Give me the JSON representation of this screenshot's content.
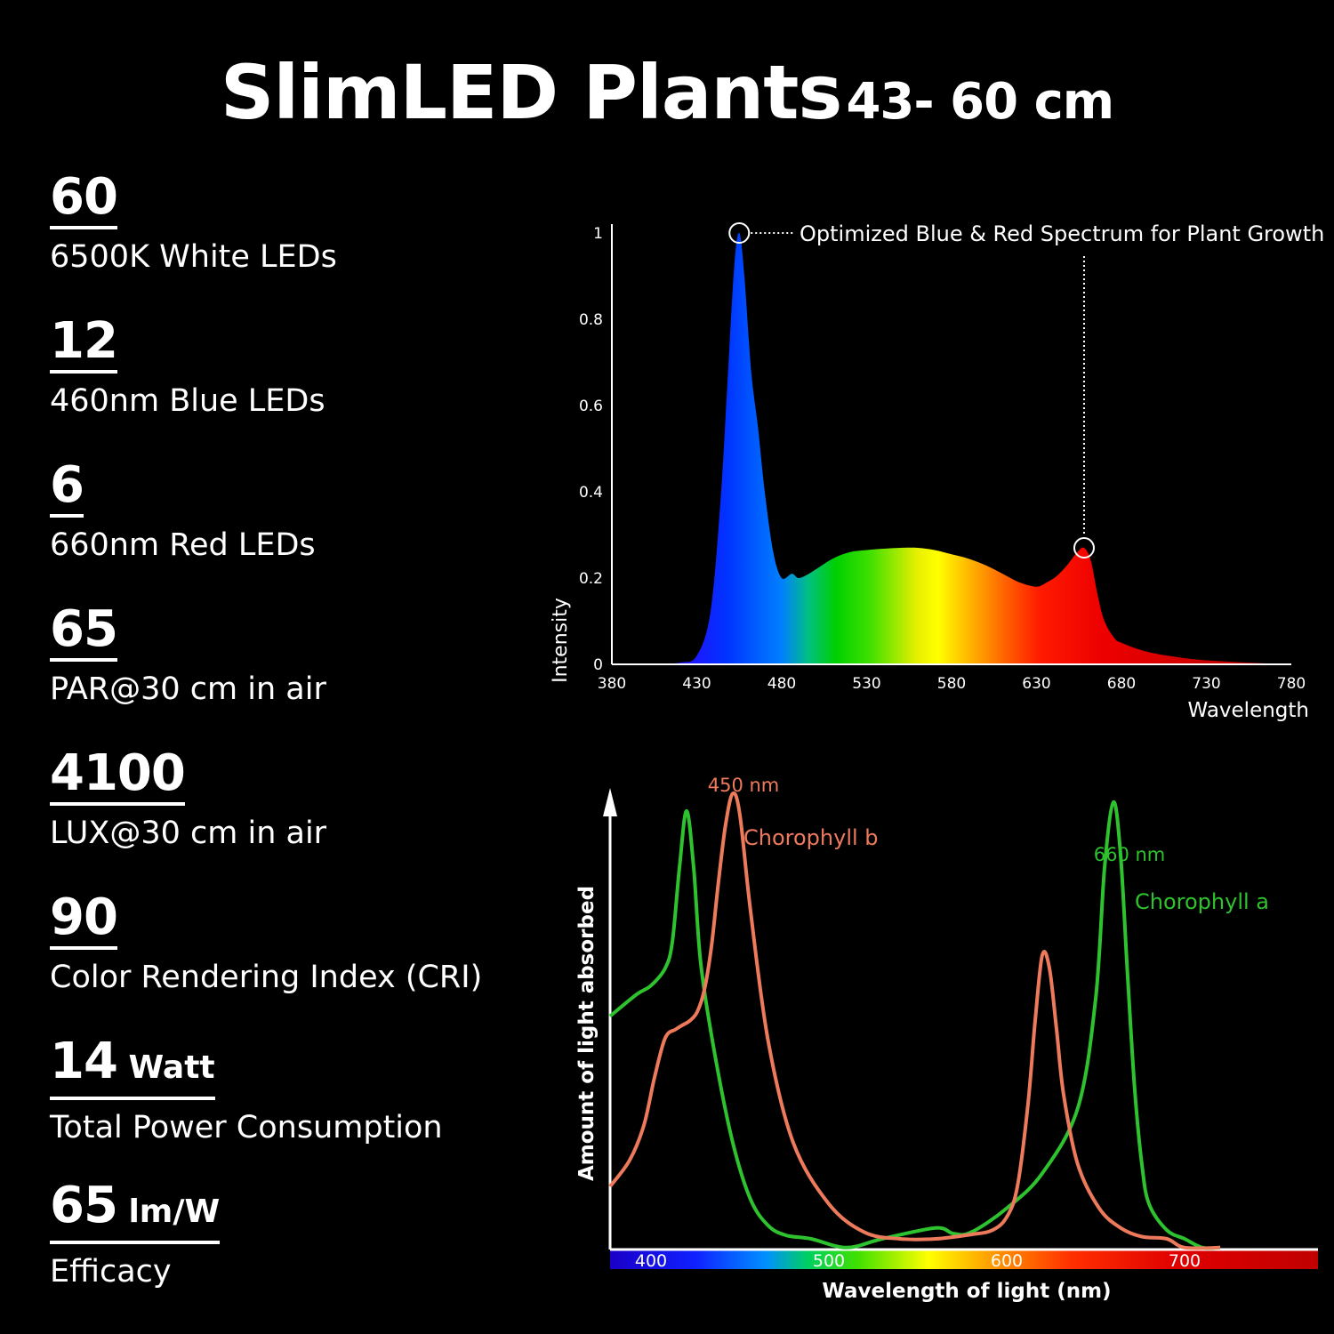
{
  "title": {
    "main": "SlimLED Plants",
    "size": "43- 60 cm"
  },
  "specs": [
    {
      "value": "60",
      "unit": "",
      "label": "6500K White LEDs"
    },
    {
      "value": "12",
      "unit": "",
      "label": "460nm Blue LEDs"
    },
    {
      "value": "6",
      "unit": "",
      "label": "660nm Red LEDs"
    },
    {
      "value": "65",
      "unit": "",
      "label": "PAR@30 cm in air"
    },
    {
      "value": "4100",
      "unit": "",
      "label": "LUX@30 cm in air"
    },
    {
      "value": "90",
      "unit": "",
      "label": "Color Rendering Index (CRI)"
    },
    {
      "value": "14",
      "unit": "Watt",
      "label": "Total Power Consumption"
    },
    {
      "value": "65",
      "unit": "lm/W",
      "label": "Efficacy"
    }
  ],
  "chart_data": [
    {
      "type": "area",
      "title": "",
      "xlabel": "Wavelength",
      "ylabel": "Intensity",
      "xlim": [
        380,
        780
      ],
      "ylim": [
        0,
        1
      ],
      "x_ticks": [
        "380",
        "430",
        "480",
        "530",
        "580",
        "630",
        "680",
        "730",
        "780"
      ],
      "y_ticks": [
        "0",
        "0.2",
        "0.4",
        "0.6",
        "0.8",
        "1"
      ],
      "annotation": "Optimized Blue & Red Spectrum for Plant Growth",
      "peaks": [
        {
          "x": 455,
          "y": 1.0
        },
        {
          "x": 658,
          "y": 0.27
        }
      ],
      "series": [
        {
          "x": [
            380,
            400,
            420,
            430,
            438,
            444,
            448,
            452,
            455,
            458,
            462,
            466,
            470,
            475,
            480,
            486,
            490,
            496,
            500,
            510,
            520,
            530,
            540,
            550,
            560,
            570,
            580,
            590,
            600,
            610,
            620,
            630,
            636,
            642,
            648,
            654,
            658,
            662,
            666,
            670,
            676,
            680,
            690,
            700,
            720,
            740,
            760,
            780
          ],
          "values": [
            0,
            0,
            0.004,
            0.02,
            0.12,
            0.38,
            0.65,
            0.92,
            1.0,
            0.9,
            0.68,
            0.55,
            0.4,
            0.26,
            0.2,
            0.21,
            0.2,
            0.21,
            0.22,
            0.245,
            0.26,
            0.265,
            0.268,
            0.27,
            0.27,
            0.265,
            0.255,
            0.245,
            0.23,
            0.21,
            0.19,
            0.18,
            0.19,
            0.205,
            0.23,
            0.26,
            0.27,
            0.24,
            0.16,
            0.1,
            0.06,
            0.05,
            0.035,
            0.025,
            0.013,
            0.007,
            0.003,
            0
          ]
        }
      ]
    },
    {
      "type": "line",
      "title": "",
      "xlabel": "Wavelength of light (nm)",
      "ylabel": "Amount of light absorbed",
      "xlim": [
        377,
        775
      ],
      "ylim": [
        0,
        1
      ],
      "x_ticks": [
        "400",
        "500",
        "600",
        "700"
      ],
      "series": [
        {
          "name": "Chorophyll a",
          "color": "#2ec22e",
          "peak_label": "660 nm",
          "x": [
            377,
            392,
            400,
            408,
            412,
            416,
            420,
            424,
            428,
            436,
            446,
            456,
            466,
            476,
            490,
            510,
            530,
            560,
            570,
            580,
            600,
            620,
            640,
            650,
            655,
            660,
            664,
            668,
            672,
            676,
            680,
            690,
            700,
            710,
            720
          ],
          "values": [
            0.51,
            0.56,
            0.58,
            0.62,
            0.68,
            0.85,
            0.98,
            0.85,
            0.63,
            0.42,
            0.22,
            0.09,
            0.03,
            0.008,
            0,
            -0.02,
            0,
            0.025,
            0.012,
            0.015,
            0.07,
            0.15,
            0.3,
            0.55,
            0.85,
            1.0,
            0.88,
            0.6,
            0.34,
            0.17,
            0.08,
            0.02,
            0,
            -0.02,
            -0.02
          ]
        },
        {
          "name": "Chorophyll b",
          "color": "#ee7a5c",
          "peak_label": "450 nm",
          "x": [
            377,
            388,
            396,
            402,
            408,
            414,
            418,
            422,
            426,
            430,
            434,
            438,
            442,
            446,
            450,
            456,
            466,
            480,
            500,
            520,
            540,
            560,
            580,
            592,
            600,
            606,
            612,
            616,
            620,
            624,
            628,
            632,
            640,
            652,
            664,
            676,
            690,
            700,
            720
          ],
          "values": [
            0.12,
            0.18,
            0.26,
            0.37,
            0.46,
            0.48,
            0.49,
            0.5,
            0.52,
            0.57,
            0.67,
            0.82,
            0.95,
            1.02,
            0.97,
            0.75,
            0.45,
            0.22,
            0.08,
            0.015,
            0,
            0,
            0.01,
            0.02,
            0.05,
            0.12,
            0.31,
            0.5,
            0.65,
            0.62,
            0.48,
            0.33,
            0.17,
            0.07,
            0.025,
            0.005,
            0,
            -0.02,
            -0.02
          ]
        }
      ]
    }
  ]
}
